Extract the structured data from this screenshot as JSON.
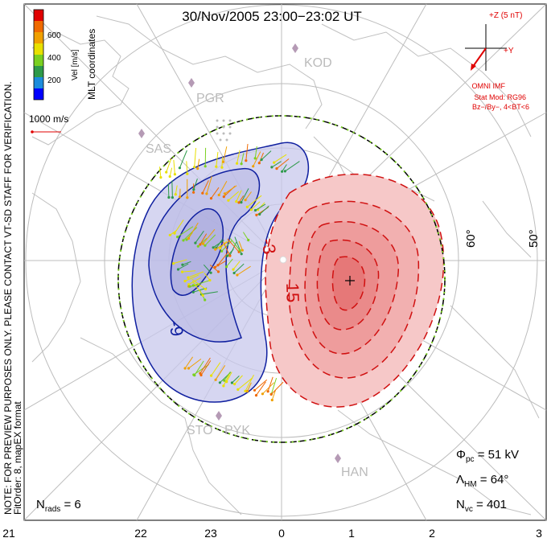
{
  "title": "30/Nov/2005 23:00−23:02 UT",
  "side_note": {
    "line1": "NOTE: FOR PREVIEW PURPOSES ONLY. PLEASE CONTACT VT-SD STAFF FOR VERIFICATION.",
    "line2": "FitOrder: 8, mapEX format"
  },
  "mlt_label": "MLT coordinates",
  "colorbar": {
    "label": "Vel [m/s]",
    "ticks": [
      "200",
      "400",
      "600"
    ],
    "colors": [
      "#0000ff",
      "#1c8cdc",
      "#2e9a4a",
      "#7ad020",
      "#e8e000",
      "#f0a000",
      "#f06a00",
      "#e00000"
    ]
  },
  "scale_vector_label": "1000 m/s",
  "stations": [
    "KOD",
    "PGR",
    "SAS",
    "STO",
    "PYK",
    "HAN"
  ],
  "latitude_labels": [
    "60°",
    "50°"
  ],
  "mlt_hours": [
    "21",
    "22",
    "23",
    "0",
    "1",
    "2",
    "3"
  ],
  "contour_labels": [
    "-9",
    "-3",
    "15"
  ],
  "imf": {
    "bz_label": "+Z (5 nT)",
    "by_label": "+Y",
    "source": "OMNI IMF",
    "model": "Stat Mod: RG96",
    "condition": "Bz−/By−, 4<BT<6"
  },
  "stats": {
    "phi_pc": "51 kV",
    "lambda_hm": "64°",
    "n_vc": "401",
    "n_rads": "6"
  },
  "colors": {
    "negative_contour": "#1020a0",
    "positive_contour": "#d01010",
    "negative_fill": "#c8c8ec",
    "positive_fill": "#f4a0a0",
    "boundary_green": "#7ad020",
    "annotation_red": "#e00000"
  }
}
